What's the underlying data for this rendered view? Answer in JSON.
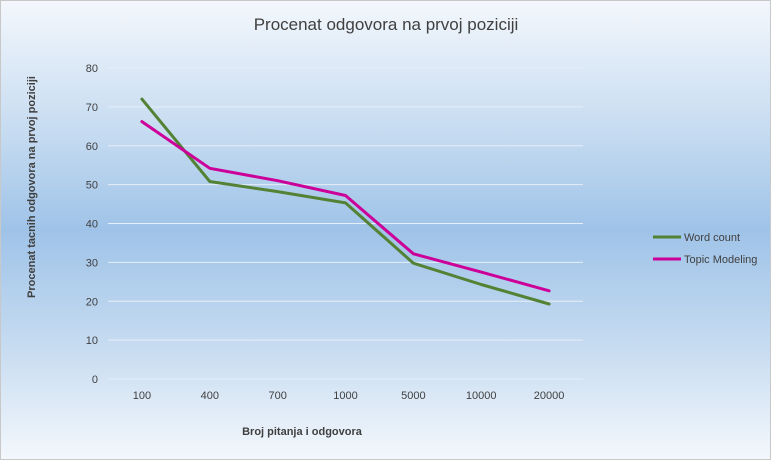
{
  "chart_data": {
    "type": "line",
    "title": "Procenat odgovora na prvoj poziciji",
    "xlabel": "Broj pitanja  i odgovora",
    "ylabel": "Procenat  tacnih odgovora  na prvoj poziciji",
    "categories": [
      "100",
      "400",
      "700",
      "1000",
      "5000",
      "10000",
      "20000"
    ],
    "ylim": [
      0,
      80
    ],
    "yticks": [
      0,
      10,
      20,
      30,
      40,
      50,
      60,
      70,
      80
    ],
    "grid": true,
    "legend_position": "right",
    "series": [
      {
        "name": "Word count",
        "color": "#548235",
        "values": [
          72,
          50.8,
          48.2,
          45.3,
          29.8,
          24.3,
          19.3
        ]
      },
      {
        "name": "Topic Modeling",
        "color": "#cc0099",
        "values": [
          66.2,
          54.2,
          51.0,
          47.2,
          32.2,
          27.5,
          22.7
        ]
      }
    ]
  }
}
